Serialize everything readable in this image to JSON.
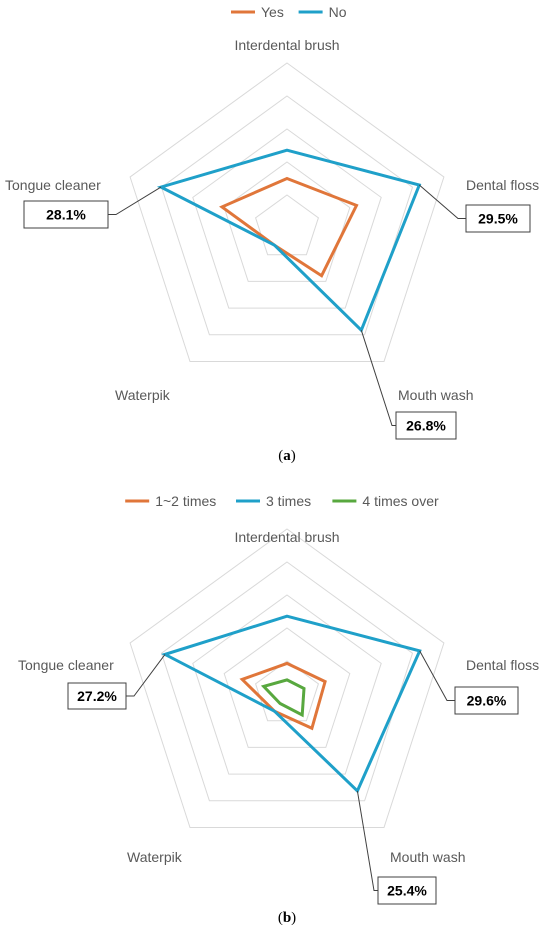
{
  "chart_data": [
    {
      "type": "radar",
      "panel_label": "a",
      "axes": [
        "Interdental brush",
        "Dental floss",
        "Mouth wash",
        "Waterpik",
        "Tongue cleaner"
      ],
      "rmax": 35,
      "ring_count": 5,
      "series": [
        {
          "name": "Yes",
          "color": "#E0763A",
          "values": [
            10.5,
            15.5,
            12.5,
            4.5,
            14.5
          ]
        },
        {
          "name": "No",
          "color": "#1FA0C9",
          "values": [
            16.5,
            29.5,
            26.8,
            4.5,
            28.1
          ]
        }
      ],
      "callouts": [
        {
          "axis": "Tongue cleaner",
          "text": "28.1%"
        },
        {
          "axis": "Dental floss",
          "text": "29.5%"
        },
        {
          "axis": "Mouth wash",
          "text": "26.8%"
        }
      ]
    },
    {
      "type": "radar",
      "panel_label": "b",
      "axes": [
        "Interdental brush",
        "Dental floss",
        "Mouth wash",
        "Waterpik",
        "Tongue cleaner"
      ],
      "rmax": 35,
      "ring_count": 5,
      "series": [
        {
          "name": "1~2 times",
          "color": "#E0763A",
          "values": [
            6.5,
            8.5,
            9.0,
            4.5,
            10.0
          ]
        },
        {
          "name": "3 times",
          "color": "#1FA0C9",
          "values": [
            16.5,
            29.6,
            25.4,
            4.5,
            27.2
          ]
        },
        {
          "name": "4 times over",
          "color": "#58A83F",
          "values": [
            3.0,
            3.8,
            5.5,
            2.5,
            5.2
          ]
        }
      ],
      "callouts": [
        {
          "axis": "Tongue cleaner",
          "text": "27.2%"
        },
        {
          "axis": "Dental floss",
          "text": "29.6%"
        },
        {
          "axis": "Mouth wash",
          "text": "25.4%"
        }
      ]
    }
  ]
}
